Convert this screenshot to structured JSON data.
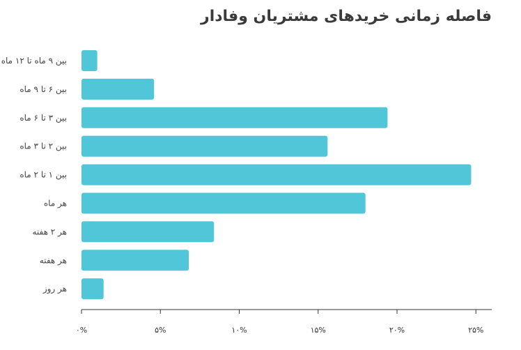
{
  "chart_data": {
    "type": "bar",
    "orientation": "horizontal",
    "title": "فاصله زمانی خریدهای مشتریان وفادار",
    "categories": [
      "بین ۹ ماه تا ۱۲ ماه",
      "بین ۶ تا ۹ ماه",
      "بین ۳ تا ۶ ماه",
      "بین ۲ تا ۳ ماه",
      "بین ۱ تا ۲ ماه",
      "هر ماه",
      "هر ۲ هفته",
      "هر هفته",
      "هر روز"
    ],
    "values": [
      1.0,
      4.6,
      19.4,
      15.6,
      24.7,
      18.0,
      8.4,
      6.8,
      1.4
    ],
    "xlim": [
      0,
      26
    ],
    "xticks": [
      0,
      5,
      10,
      15,
      20,
      25
    ],
    "xtick_labels": [
      "۰%",
      "۵%",
      "۱۰%",
      "۱۵%",
      "۲۰%",
      "۲۵%"
    ],
    "bar_color": "#52c6d9",
    "axis_color": "#333333",
    "grid": false
  }
}
